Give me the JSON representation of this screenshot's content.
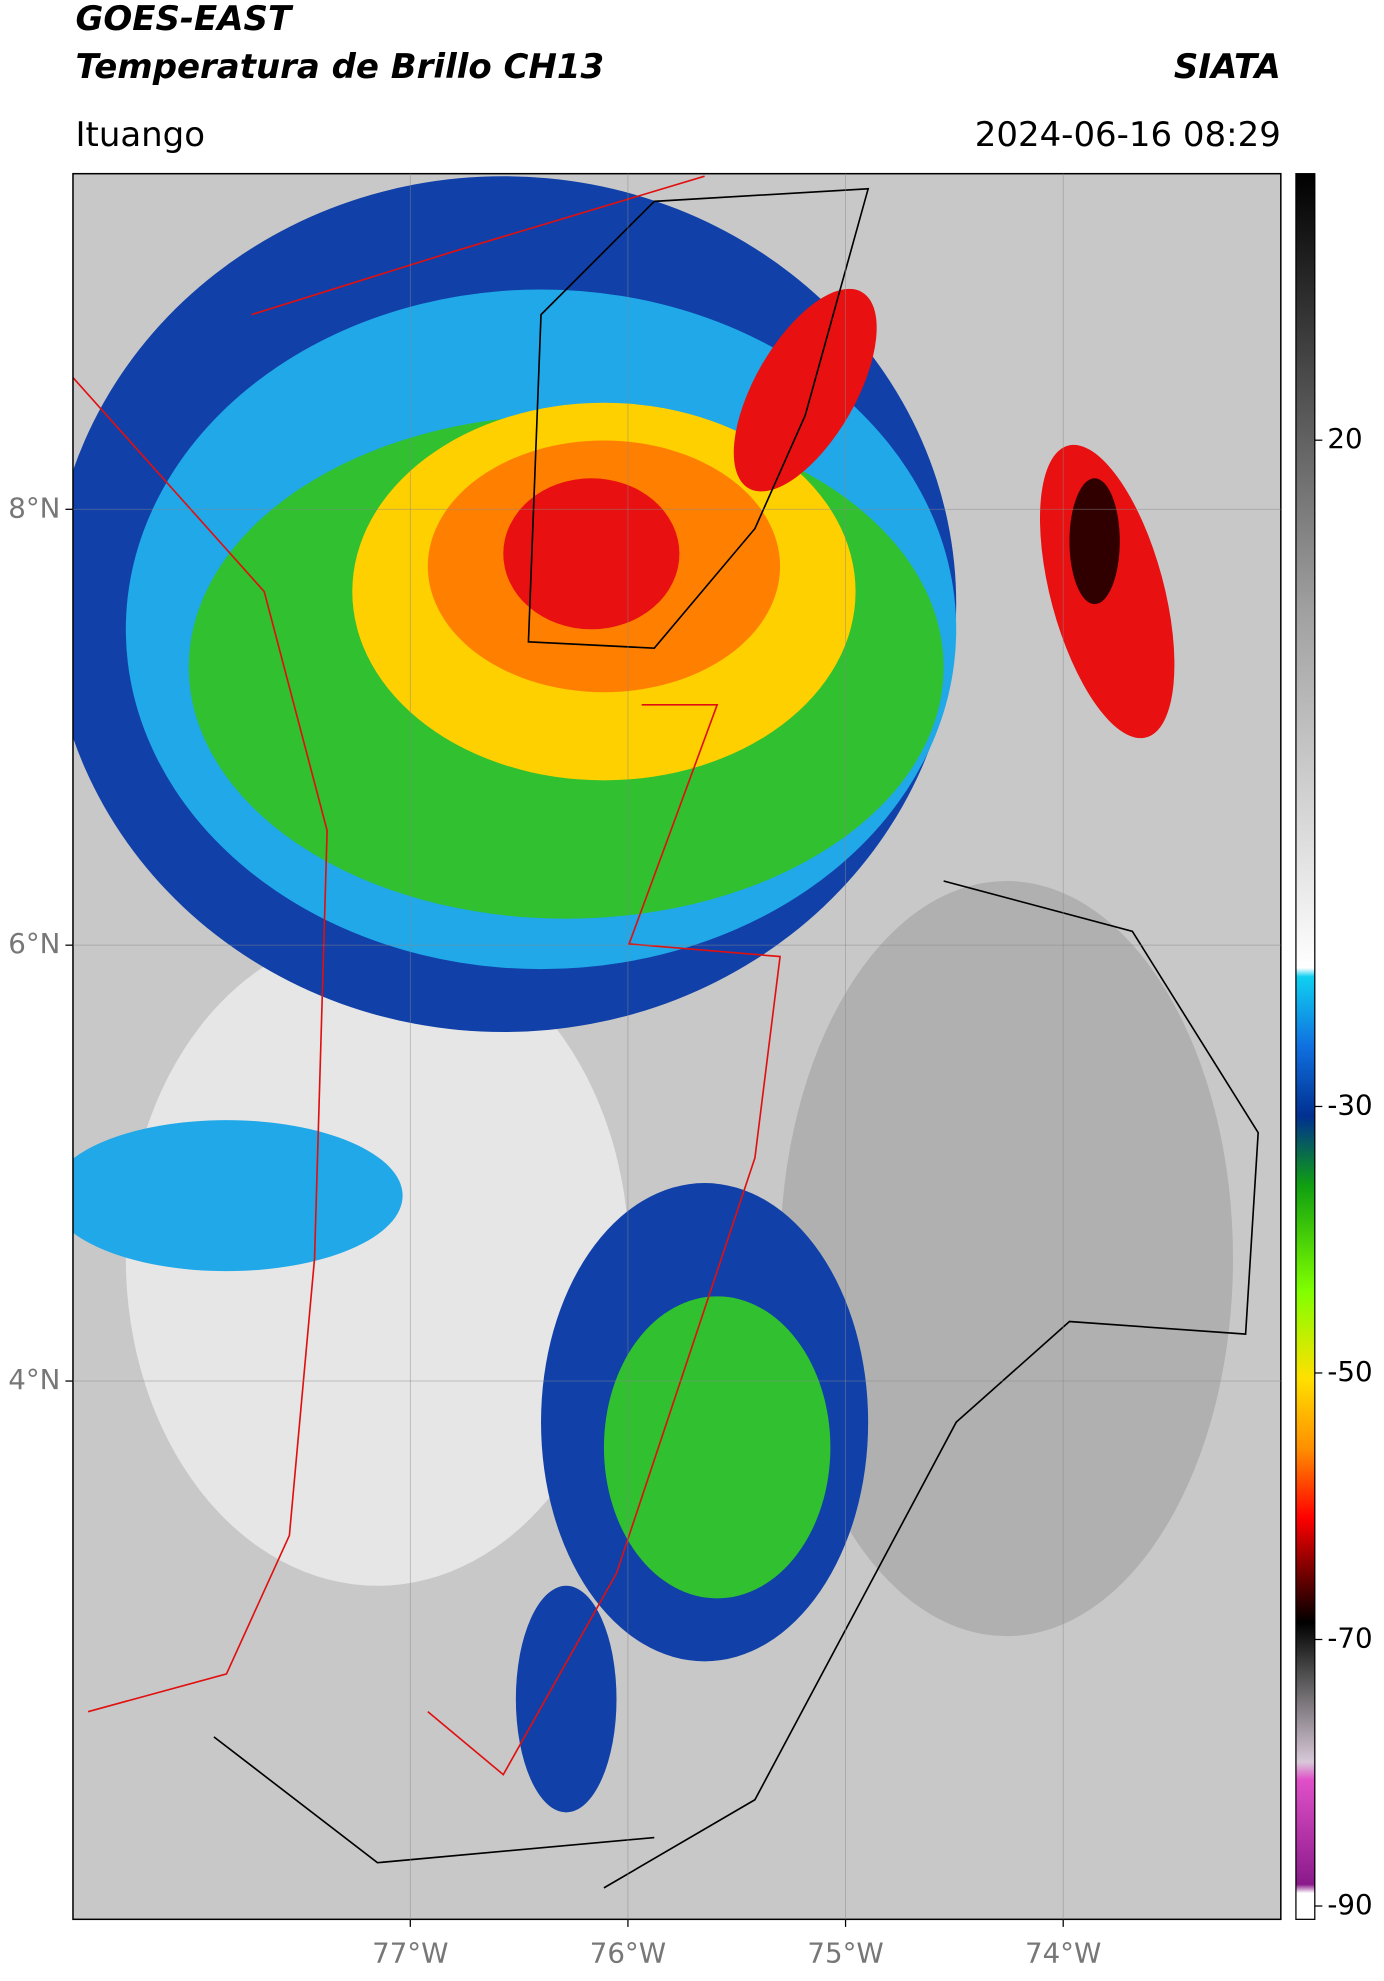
{
  "header": {
    "title": "GOES-EAST",
    "subtitle": "Temperatura de Brillo CH13",
    "credit": "SIATA",
    "region": "Ituango",
    "datetime": "2024-06-16 08:29"
  },
  "map": {
    "xlim": [
      -78.55,
      -73.0
    ],
    "ylim": [
      1.53,
      9.54
    ],
    "xticks": [
      {
        "value": -77,
        "label": "77°W"
      },
      {
        "value": -76,
        "label": "76°W"
      },
      {
        "value": -75,
        "label": "75°W"
      },
      {
        "value": -74,
        "label": "74°W"
      }
    ],
    "yticks": [
      {
        "value": 8,
        "label": "8°N"
      },
      {
        "value": 6,
        "label": "6°N"
      },
      {
        "value": 4,
        "label": "4°N"
      }
    ]
  },
  "colorbar": {
    "lim": [
      -91,
      40
    ],
    "ticks": [
      20,
      -30,
      -50,
      -70,
      -90
    ]
  }
}
